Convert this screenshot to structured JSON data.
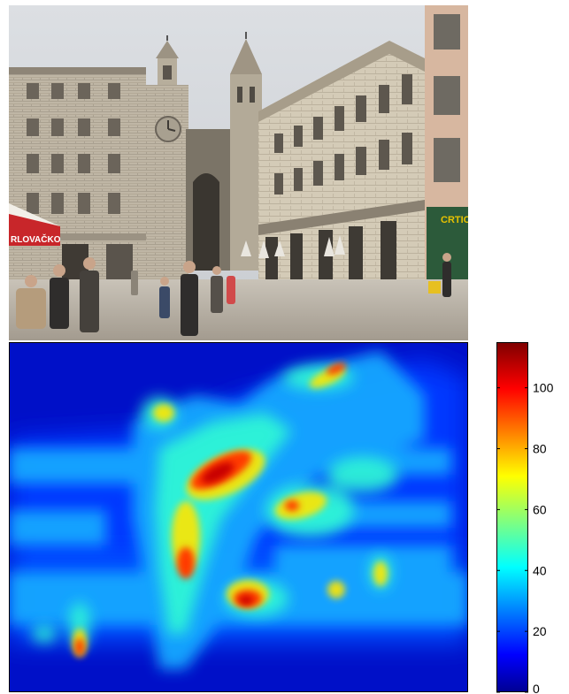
{
  "photo": {
    "storefront_sign_left": "RLOVAČKO",
    "storefront_sign_right": "CRTIC"
  },
  "colorbar": {
    "colormap": "jet",
    "min": 0,
    "max": 115,
    "tick_labels": [
      "0",
      "20",
      "40",
      "60",
      "80",
      "100"
    ],
    "colors": [
      "#00008f",
      "#0000ff",
      "#00ffff",
      "#ffff00",
      "#ff0000",
      "#800000"
    ]
  }
}
